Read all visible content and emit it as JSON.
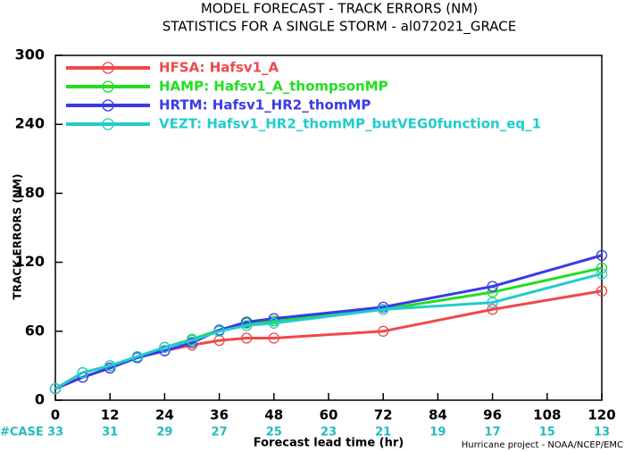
{
  "chart_data": {
    "type": "line",
    "title": "MODEL FORECAST - TRACK ERRORS (NM)",
    "subtitle": "STATISTICS FOR A SINGLE STORM - al072021_GRACE",
    "xlabel": "Forecast lead time (hr)",
    "ylabel": "TRACK ERRORS (NM)",
    "footer": "Hurricane project - NOAA/NCEP/EMC",
    "x": [
      0,
      6,
      12,
      18,
      24,
      30,
      36,
      42,
      48,
      72,
      96,
      120
    ],
    "series": [
      {
        "name": "HFSA: Hafsv1_A",
        "color": "#f04848",
        "values": [
          10,
          20,
          28,
          37,
          43,
          48,
          52,
          54,
          54,
          60,
          79,
          95
        ]
      },
      {
        "name": "HAMP: Hafsv1_A_thompsonMP",
        "color": "#22dd22",
        "values": [
          10,
          24,
          30,
          37,
          46,
          53,
          61,
          67,
          69,
          79,
          94,
          115
        ]
      },
      {
        "name": "HRTM: Hafsv1_HR2_thomMP",
        "color": "#3a3ae8",
        "values": [
          10,
          20,
          28,
          37,
          43,
          50,
          61,
          68,
          71,
          81,
          99,
          126
        ]
      },
      {
        "name": "VEZT: Hafsv1_HR2_thomMP_butVEG0function_eq_1",
        "color": "#22cccc",
        "values": [
          10,
          24,
          30,
          38,
          46,
          52,
          60,
          65,
          67,
          79,
          85,
          110
        ]
      }
    ],
    "xlim": [
      0,
      120
    ],
    "xticks": [
      0,
      12,
      24,
      36,
      48,
      60,
      72,
      84,
      96,
      108,
      120
    ],
    "ylim": [
      0,
      300
    ],
    "yticks": [
      0,
      60,
      120,
      180,
      240,
      300
    ],
    "case_label": "#CASE",
    "case_counts": [
      33,
      31,
      29,
      27,
      25,
      23,
      21,
      19,
      17,
      15,
      13
    ],
    "case_color": "#22bbbb",
    "legend": "upper left"
  }
}
